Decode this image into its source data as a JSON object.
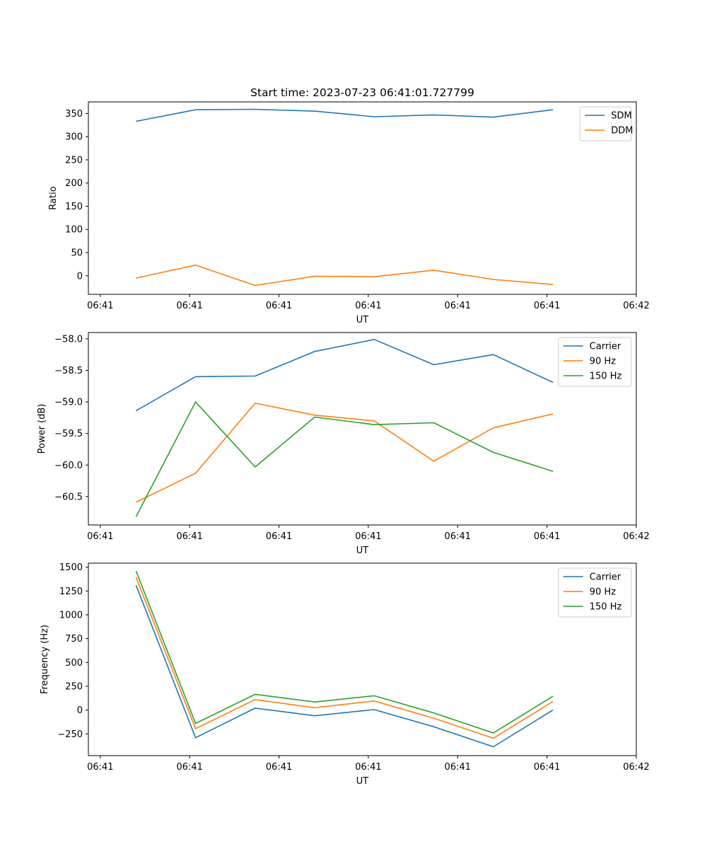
{
  "figure_title": "Start time: 2023-07-23 06:41:01.727799",
  "colors": {
    "blue": "#1f77b4",
    "orange": "#ff7f0e",
    "green": "#2ca02c"
  },
  "chart_data": [
    {
      "type": "line",
      "title": "Start time: 2023-07-23 06:41:01.727799",
      "xlabel": "UT",
      "ylabel": "Ratio",
      "x": [
        1,
        2,
        3,
        4,
        5,
        6,
        7,
        8
      ],
      "xlim": [
        0.2,
        9.4
      ],
      "x_ticks": [
        0.4,
        1.9,
        3.4,
        4.9,
        6.4,
        7.9,
        9.4
      ],
      "x_tick_labels": [
        "06:41",
        "06:41",
        "06:41",
        "06:41",
        "06:41",
        "06:41",
        "06:42"
      ],
      "ylim": [
        -40,
        375
      ],
      "y_ticks": [
        0,
        50,
        100,
        150,
        200,
        250,
        300,
        350
      ],
      "y_tick_labels": [
        "0",
        "50",
        "100",
        "150",
        "200",
        "250",
        "300",
        "350"
      ],
      "legend_position": "top-right",
      "series": [
        {
          "name": "SDM",
          "color": "#1f77b4",
          "values": [
            333,
            358,
            359,
            355,
            343,
            347,
            342,
            358
          ]
        },
        {
          "name": "DDM",
          "color": "#ff7f0e",
          "values": [
            -5,
            23,
            -21,
            -1,
            -2,
            12,
            -8,
            -19
          ]
        }
      ]
    },
    {
      "type": "line",
      "xlabel": "UT",
      "ylabel": "Power (dB)",
      "x": [
        1,
        2,
        3,
        4,
        5,
        6,
        7,
        8
      ],
      "xlim": [
        0.2,
        9.4
      ],
      "x_ticks": [
        0.4,
        1.9,
        3.4,
        4.9,
        6.4,
        7.9,
        9.4
      ],
      "x_tick_labels": [
        "06:41",
        "06:41",
        "06:41",
        "06:41",
        "06:41",
        "06:41",
        "06:42"
      ],
      "ylim": [
        -60.95,
        -57.9
      ],
      "y_ticks": [
        -58.0,
        -58.5,
        -59.0,
        -59.5,
        -60.0,
        -60.5
      ],
      "y_tick_labels": [
        "−58.0",
        "−58.5",
        "−59.0",
        "−59.5",
        "−60.0",
        "−60.5"
      ],
      "legend_position": "top-right",
      "series": [
        {
          "name": "Carrier",
          "color": "#1f77b4",
          "values": [
            -59.14,
            -58.6,
            -58.59,
            -58.2,
            -58.01,
            -58.41,
            -58.25,
            -58.69
          ]
        },
        {
          "name": "90 Hz",
          "color": "#ff7f0e",
          "values": [
            -60.59,
            -60.13,
            -59.02,
            -59.21,
            -59.3,
            -59.94,
            -59.41,
            -59.19
          ]
        },
        {
          "name": "150 Hz",
          "color": "#2ca02c",
          "values": [
            -60.82,
            -59.0,
            -60.03,
            -59.24,
            -59.36,
            -59.33,
            -59.8,
            -60.1
          ]
        }
      ]
    },
    {
      "type": "line",
      "xlabel": "UT",
      "ylabel": "Frequency (Hz)",
      "x": [
        1,
        2,
        3,
        4,
        5,
        6,
        7,
        8
      ],
      "xlim": [
        0.2,
        9.4
      ],
      "x_ticks": [
        0.4,
        1.9,
        3.4,
        4.9,
        6.4,
        7.9,
        9.4
      ],
      "x_tick_labels": [
        "06:41",
        "06:41",
        "06:41",
        "06:41",
        "06:41",
        "06:41",
        "06:42"
      ],
      "ylim": [
        -478,
        1542
      ],
      "y_ticks": [
        -250,
        0,
        250,
        500,
        750,
        1000,
        1250,
        1500
      ],
      "y_tick_labels": [
        "−250",
        "0",
        "250",
        "500",
        "750",
        "1000",
        "1250",
        "1500"
      ],
      "legend_position": "top-right",
      "series": [
        {
          "name": "Carrier",
          "color": "#1f77b4",
          "values": [
            1310,
            -290,
            20,
            -60,
            5,
            -175,
            -385,
            0
          ]
        },
        {
          "name": "90 Hz",
          "color": "#ff7f0e",
          "values": [
            1395,
            -195,
            110,
            25,
            95,
            -85,
            -295,
            90
          ]
        },
        {
          "name": "150 Hz",
          "color": "#2ca02c",
          "values": [
            1460,
            -140,
            165,
            85,
            150,
            -30,
            -240,
            145
          ]
        }
      ]
    }
  ]
}
